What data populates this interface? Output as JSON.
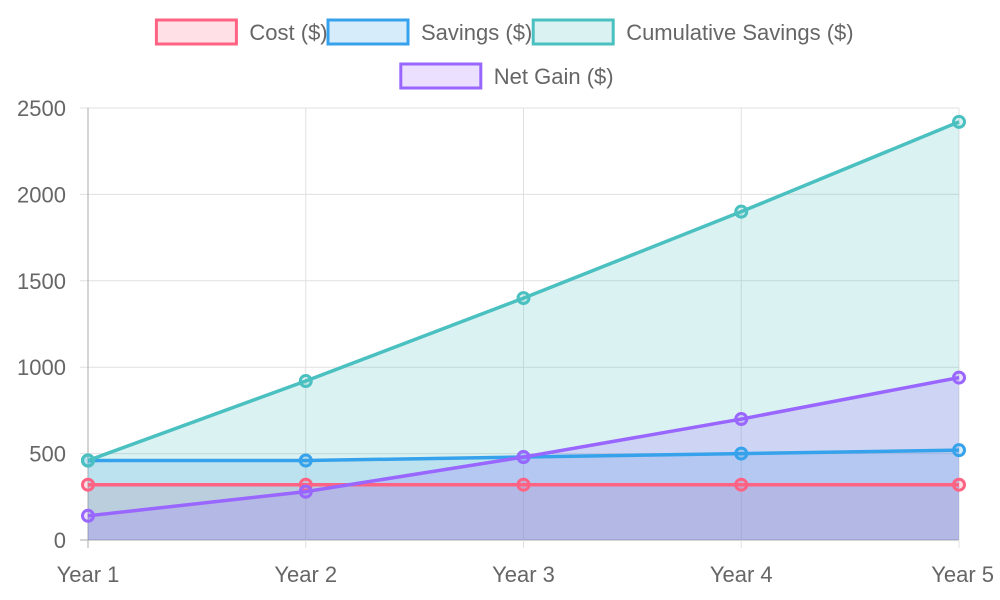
{
  "chart_data": {
    "type": "line",
    "title": "",
    "xlabel": "",
    "ylabel": "",
    "categories": [
      "Year 1",
      "Year 2",
      "Year 3",
      "Year 4",
      "Year 5"
    ],
    "ylim": [
      0,
      2500
    ],
    "yticks": [
      "0",
      "500",
      "1000",
      "1500",
      "2000",
      "2500"
    ],
    "grid": true,
    "filled": true,
    "legend_position": "top",
    "series": [
      {
        "name": "Cost ($)",
        "color": "#ff6384",
        "values": [
          320,
          320,
          320,
          320,
          320
        ]
      },
      {
        "name": "Savings ($)",
        "color": "#36a2eb",
        "values": [
          460,
          460,
          480,
          500,
          520
        ]
      },
      {
        "name": "Cumulative Savings ($)",
        "color": "#4bc0c0",
        "values": [
          460,
          920,
          1400,
          1900,
          2420
        ]
      },
      {
        "name": "Net Gain ($)",
        "color": "#9966ff",
        "values": [
          140,
          280,
          480,
          700,
          940
        ]
      }
    ]
  }
}
